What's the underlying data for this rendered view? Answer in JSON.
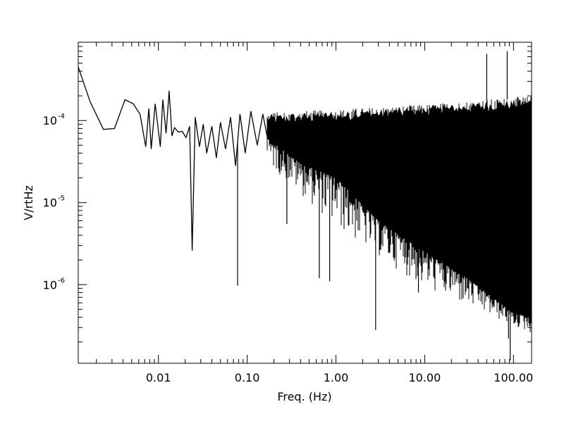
{
  "chart_data": {
    "type": "line",
    "title": "",
    "xlabel": "Freq. (Hz)",
    "ylabel": "V/rtHz",
    "x_scale": "log",
    "y_scale": "log",
    "xlim": [
      0.00125,
      160
    ],
    "ylim": [
      1.1e-07,
      0.0009
    ],
    "grid": false,
    "x_ticks": [
      {
        "value": 0.01,
        "label": "0.01"
      },
      {
        "value": 0.1,
        "label": "0.10"
      },
      {
        "value": 1,
        "label": "1.00"
      },
      {
        "value": 10,
        "label": "10.00"
      },
      {
        "value": 100,
        "label": "100.00"
      }
    ],
    "y_ticks": [
      {
        "value": 0.0001,
        "base": "10",
        "exp": "-4"
      },
      {
        "value": 1e-05,
        "base": "10",
        "exp": "-5"
      },
      {
        "value": 1e-06,
        "base": "10",
        "exp": "-6"
      }
    ],
    "series": [
      {
        "color": "#000000",
        "x": [
          0.00125,
          0.0017,
          0.0024,
          0.0032,
          0.0042,
          0.0052,
          0.0062,
          0.0072,
          0.0078,
          0.0083,
          0.0092,
          0.0105,
          0.0112,
          0.0122,
          0.0132,
          0.0142,
          0.0152,
          0.0168,
          0.0185,
          0.0205,
          0.0225,
          0.024,
          0.026,
          0.029,
          0.032,
          0.035,
          0.04,
          0.045,
          0.05,
          0.057,
          0.065,
          0.074,
          0.083,
          0.095,
          0.11,
          0.13,
          0.15,
          0.17
        ],
        "values": [
          0.00045,
          0.00017,
          7.8e-05,
          8e-05,
          0.00018,
          0.00016,
          0.00012,
          4.8e-05,
          0.00014,
          4.5e-05,
          0.00016,
          4.8e-05,
          0.00018,
          7e-05,
          0.00023,
          6.5e-05,
          8.2e-05,
          7.2e-05,
          7.4e-05,
          6.2e-05,
          8.5e-05,
          2.6e-06,
          0.00011,
          4.8e-05,
          9e-05,
          4e-05,
          8.5e-05,
          3.5e-05,
          9.5e-05,
          4.5e-05,
          0.00011,
          2.8e-05,
          0.00012,
          4e-05,
          0.00013,
          5e-05,
          0.00012,
          6e-05
        ]
      }
    ],
    "spikes": [
      {
        "x": 0.024,
        "y": 2.6e-06
      },
      {
        "x": 0.078,
        "y": 9.7e-07
      },
      {
        "x": 0.28,
        "y": 5.5e-06
      },
      {
        "x": 0.65,
        "y": 1.2e-06
      },
      {
        "x": 0.85,
        "y": 1.1e-06
      },
      {
        "x": 2.8,
        "y": 2.8e-07
      },
      {
        "x": 8.5,
        "y": 8e-07
      },
      {
        "x": 50,
        "y": 0.00065
      },
      {
        "x": 85,
        "y": 0.0007
      },
      {
        "x": 88,
        "y": 2.2e-07
      },
      {
        "x": 92,
        "y": 1.2e-07
      },
      {
        "x": 105,
        "y": 3.5e-07
      }
    ],
    "noise_band": {
      "x_start": 0.17,
      "x_end": 160,
      "upper": [
        {
          "x": 0.17,
          "y": 0.00012
        },
        {
          "x": 1,
          "y": 0.00013
        },
        {
          "x": 10,
          "y": 0.00015
        },
        {
          "x": 160,
          "y": 0.00019
        }
      ],
      "fill_lower": [
        {
          "x": 0.17,
          "y": 6e-05
        },
        {
          "x": 0.4,
          "y": 3e-05
        },
        {
          "x": 1,
          "y": 2e-05
        },
        {
          "x": 3,
          "y": 6e-06
        },
        {
          "x": 10,
          "y": 2.5e-06
        },
        {
          "x": 30,
          "y": 1.2e-06
        },
        {
          "x": 100,
          "y": 4.5e-07
        },
        {
          "x": 160,
          "y": 4e-07
        }
      ],
      "spike_lower": [
        {
          "x": 0.17,
          "y": 3e-05
        },
        {
          "x": 1,
          "y": 5e-06
        },
        {
          "x": 10,
          "y": 9e-07
        },
        {
          "x": 160,
          "y": 2.5e-07
        }
      ]
    }
  }
}
